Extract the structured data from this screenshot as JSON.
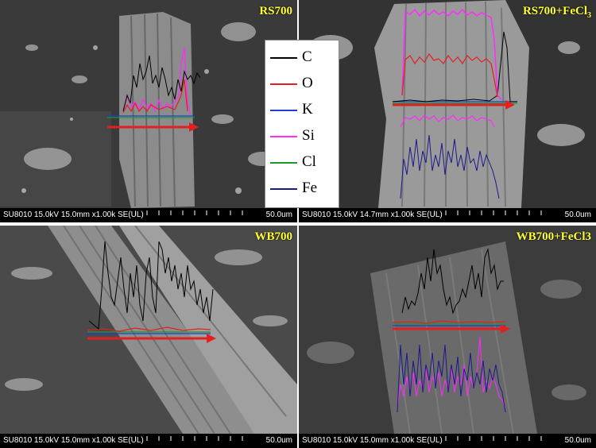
{
  "panels": [
    {
      "label": "RS700",
      "meta": "SU8010 15.0kV 15.0mm x1.00k SE(UL)",
      "scale": "50.0um"
    },
    {
      "label_main": "RS700+FeCl",
      "label_sub": "3",
      "meta": "SU8010 15.0kV 14.7mm x1.00k SE(UL)",
      "scale": "50.0um"
    },
    {
      "label": "WB700",
      "meta": "SU8010 15.0kV 15.0mm x1.00k SE(UL)",
      "scale": "50.0um"
    },
    {
      "label": "WB700+FeCl3",
      "meta": "SU8010 15.0kV 15.0mm x1.00k SE(UL)",
      "scale": "50.0um"
    }
  ],
  "legend": [
    {
      "name": "C",
      "color": "#000000"
    },
    {
      "name": "O",
      "color": "#e32020"
    },
    {
      "name": "K",
      "color": "#1f3fd6"
    },
    {
      "name": "Si",
      "color": "#ff2bff"
    },
    {
      "name": "Cl",
      "color": "#1a9a2a"
    },
    {
      "name": "Fe",
      "color": "#1a1a8c"
    }
  ],
  "colors": {
    "label_text": "#ffff33",
    "scan_arrow": "#e32020"
  }
}
